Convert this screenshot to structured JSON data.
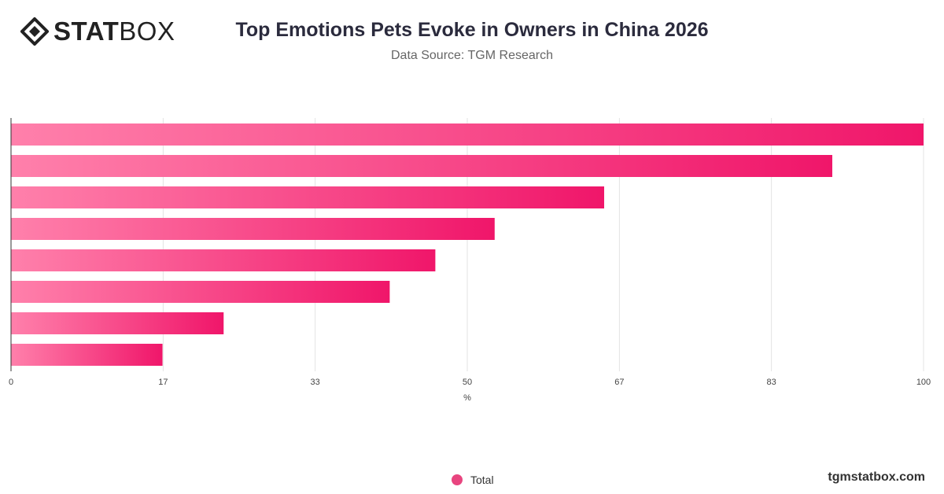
{
  "brand": {
    "logo_bold": "STAT",
    "logo_light": "BOX",
    "url": "tgmstatbox.com"
  },
  "title": "Top Emotions Pets Evoke in Owners in China 2026",
  "subtitle": "Data Source: TGM Research",
  "legend": {
    "label": "Total"
  },
  "colors": {
    "bar_start": "#ff80ab",
    "bar_end": "#f0166a",
    "grid": "#e3e3e3",
    "axis": "#333333",
    "legend_dot": "#e8457f"
  },
  "chart_data": {
    "type": "bar",
    "orientation": "horizontal",
    "categories": [
      "",
      "",
      "",
      "",
      "",
      "",
      "",
      ""
    ],
    "series": [
      {
        "name": "Total",
        "values": [
          100,
          90,
          65,
          53,
          46.5,
          41.5,
          23.3,
          16.6
        ]
      }
    ],
    "xlabel": "%",
    "xlim": [
      0,
      100
    ],
    "xticks": [
      "0",
      "17",
      "33",
      "50",
      "67",
      "83",
      "100"
    ],
    "xtick_values": [
      0,
      16.67,
      33.33,
      50,
      66.67,
      83.33,
      100
    ],
    "grid": true,
    "legend_position": "bottom-center"
  }
}
